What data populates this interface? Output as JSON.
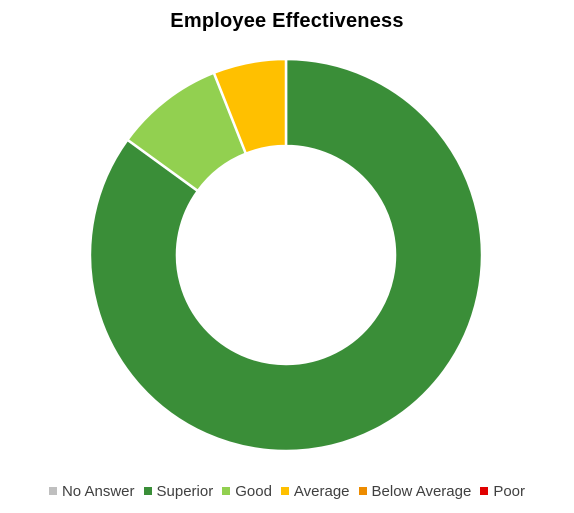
{
  "chart_data": {
    "type": "pie",
    "variant": "donut",
    "title": "Employee Effectiveness",
    "categories": [
      "No Answer",
      "Superior",
      "Good",
      "Average",
      "Below Average",
      "Poor"
    ],
    "values": [
      0,
      85,
      9,
      6,
      0,
      0
    ],
    "colors": [
      "#BFBFBF",
      "#3A8E38",
      "#92D050",
      "#FFC000",
      "#ED8C00",
      "#E00000"
    ],
    "legend_position": "bottom"
  }
}
